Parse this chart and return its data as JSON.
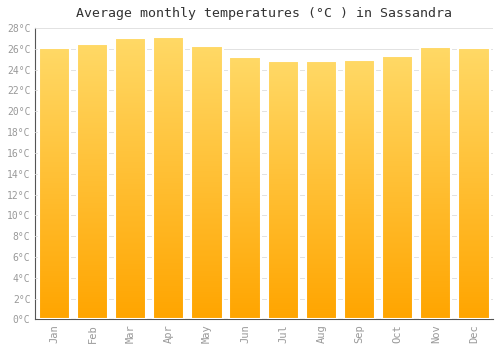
{
  "months": [
    "Jan",
    "Feb",
    "Mar",
    "Apr",
    "May",
    "Jun",
    "Jul",
    "Aug",
    "Sep",
    "Oct",
    "Nov",
    "Dec"
  ],
  "temperatures": [
    26.1,
    26.5,
    27.0,
    27.1,
    26.3,
    25.2,
    24.8,
    24.8,
    24.9,
    25.3,
    26.2,
    26.1
  ],
  "bar_color_bottom": "#FFA500",
  "bar_color_top": "#FFD966",
  "bar_edge_color": "#FFFFFF",
  "background_color": "#FFFFFF",
  "grid_color": "#DDDDDD",
  "title": "Average monthly temperatures (°C ) in Sassandra",
  "title_fontsize": 9.5,
  "ylim": [
    0,
    28
  ],
  "ytick_step": 2,
  "font_color": "#999999",
  "font_family": "monospace"
}
